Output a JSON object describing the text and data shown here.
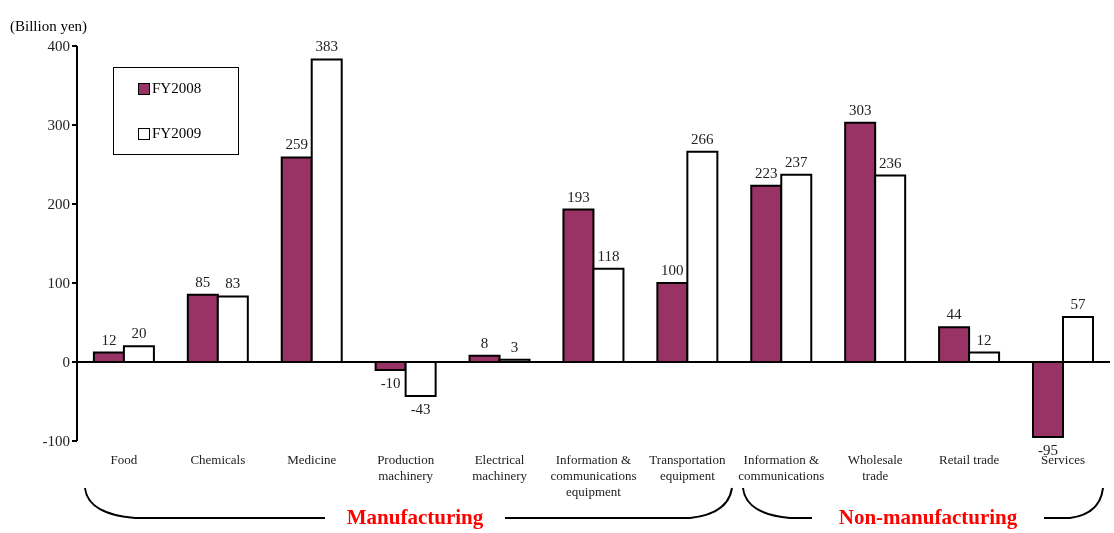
{
  "chart_data": {
    "type": "bar",
    "ylabel": "(Billion yen)",
    "categories": [
      "Food",
      "Chemicals",
      "Medicine",
      "Production machinery",
      "Electrical machinery",
      "Information & communications equipment",
      "Transportation equipment",
      "Information & communications",
      "Wholesale trade",
      "Retail trade",
      "Services"
    ],
    "series": [
      {
        "name": "FY2008",
        "color": "#993366",
        "values": [
          12,
          85,
          259,
          -10,
          8,
          193,
          100,
          223,
          303,
          44,
          -95
        ]
      },
      {
        "name": "FY2009",
        "color": "#ffffff",
        "values": [
          20,
          83,
          383,
          -43,
          3,
          118,
          266,
          237,
          236,
          12,
          57
        ]
      }
    ],
    "ylim": [
      -100,
      400
    ],
    "yticks": [
      -100,
      0,
      100,
      200,
      300,
      400
    ],
    "data_labels": true,
    "legend": "top left",
    "annotations": [
      "Manufacturing",
      "Non-manufacturing"
    ]
  }
}
